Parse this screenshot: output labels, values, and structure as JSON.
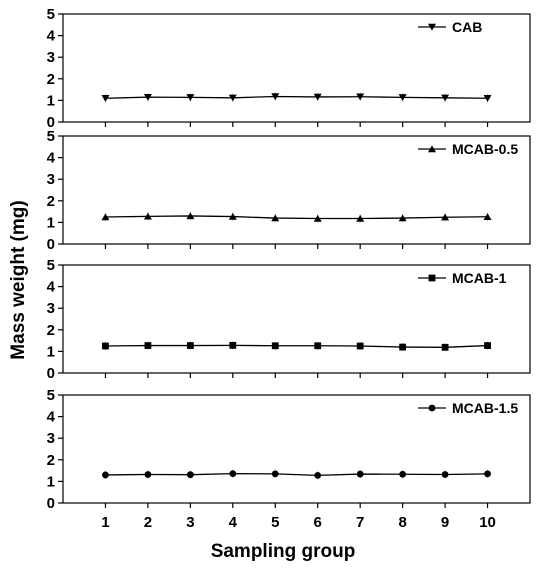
{
  "chart_data": {
    "type": "line",
    "xlabel": "Sampling group",
    "ylabel": "Mass weight (mg)",
    "x": [
      1,
      2,
      3,
      4,
      5,
      6,
      7,
      8,
      9,
      10
    ],
    "x_ticks": [
      "1",
      "2",
      "3",
      "4",
      "5",
      "6",
      "7",
      "8",
      "9",
      "10"
    ],
    "y_ticks": [
      "0",
      "1",
      "2",
      "3",
      "4",
      "5"
    ],
    "ylim": [
      0,
      5
    ],
    "xlim": [
      0,
      11
    ],
    "panels": [
      {
        "legend": "CAB",
        "marker": "triangle-down",
        "legend_position": "top-right",
        "values": [
          1.1,
          1.15,
          1.14,
          1.12,
          1.18,
          1.16,
          1.17,
          1.14,
          1.12,
          1.1
        ]
      },
      {
        "legend": "MCAB-0.5",
        "marker": "triangle-up",
        "legend_position": "top-right",
        "values": [
          1.25,
          1.28,
          1.3,
          1.27,
          1.2,
          1.18,
          1.18,
          1.2,
          1.24,
          1.26
        ]
      },
      {
        "legend": "MCAB-1",
        "marker": "square",
        "legend_position": "top-right",
        "values": [
          1.25,
          1.27,
          1.27,
          1.28,
          1.26,
          1.26,
          1.25,
          1.2,
          1.19,
          1.27
        ]
      },
      {
        "legend": "MCAB-1.5",
        "marker": "circle",
        "legend_position": "top-right",
        "values": [
          1.3,
          1.32,
          1.31,
          1.36,
          1.35,
          1.28,
          1.34,
          1.33,
          1.32,
          1.35
        ]
      }
    ],
    "colors": {
      "line": "#000000",
      "errorbar": "#9a9a9a"
    }
  }
}
